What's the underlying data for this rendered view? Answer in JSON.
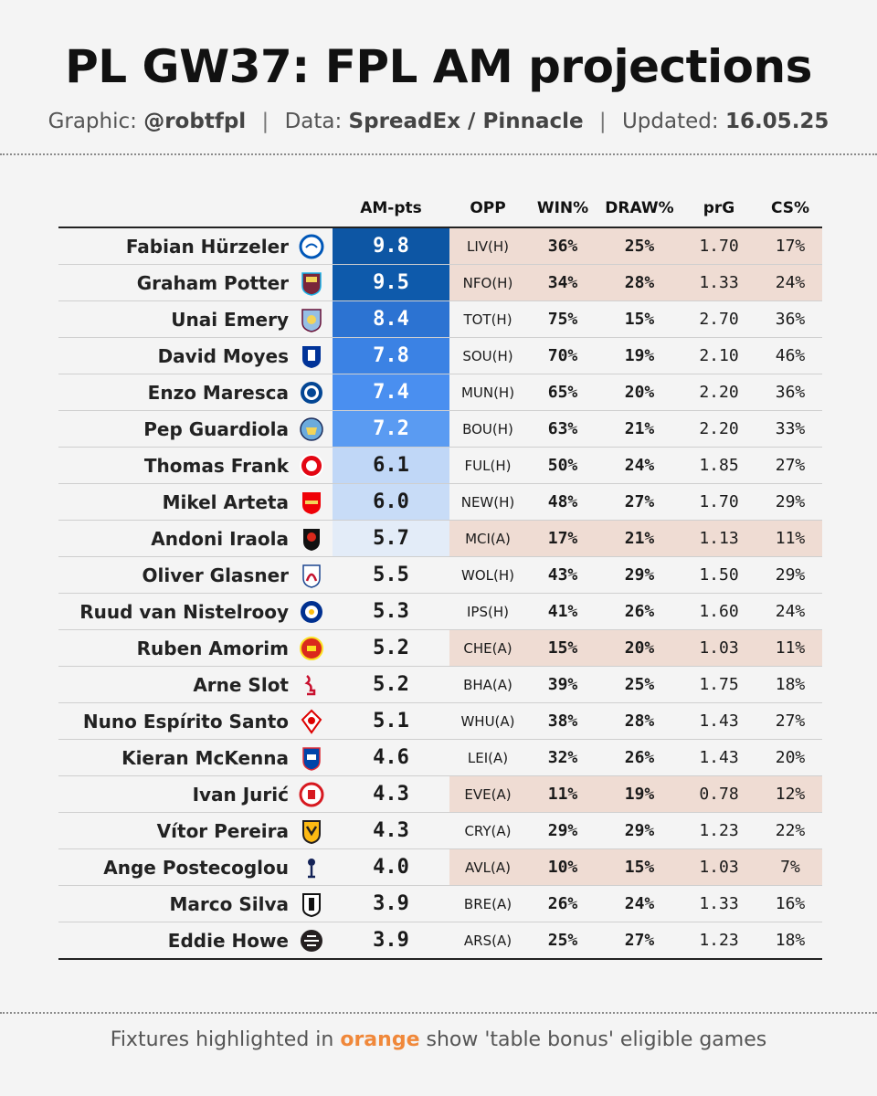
{
  "title": "PL GW37: FPL AM projections",
  "subtitle": {
    "graphic_label": "Graphic:",
    "graphic_value": "@robtfpl",
    "sep": "|",
    "data_label": "Data:",
    "data_value": "SpreadEx / Pinnacle",
    "updated_label": "Updated:",
    "updated_value": "16.05.25"
  },
  "columns": {
    "pts": "AM-pts",
    "opp": "OPP",
    "win": "WIN%",
    "draw": "DRAW%",
    "prg": "prG",
    "cs": "CS%"
  },
  "colors": {
    "highlight": "#efdcd3",
    "accent": "#f0883a"
  },
  "rows": [
    {
      "name": "Fabian Hürzeler",
      "crest": "brighton-crest-icon",
      "pts": "9.8",
      "pts_bg": "#0d56a4",
      "pts_fg": "#ffffff",
      "opp": "LIV(H)",
      "win": "36%",
      "draw": "25%",
      "prg": "1.70",
      "cs": "17%",
      "highlight": true
    },
    {
      "name": "Graham Potter",
      "crest": "west-ham-crest-icon",
      "pts": "9.5",
      "pts_bg": "#0e5aab",
      "pts_fg": "#ffffff",
      "opp": "NFO(H)",
      "win": "34%",
      "draw": "28%",
      "prg": "1.33",
      "cs": "24%",
      "highlight": true
    },
    {
      "name": "Unai Emery",
      "crest": "aston-villa-crest-icon",
      "pts": "8.4",
      "pts_bg": "#2c73d2",
      "pts_fg": "#ffffff",
      "opp": "TOT(H)",
      "win": "75%",
      "draw": "15%",
      "prg": "2.70",
      "cs": "36%",
      "highlight": false
    },
    {
      "name": "David Moyes",
      "crest": "everton-crest-icon",
      "pts": "7.8",
      "pts_bg": "#3b82e4",
      "pts_fg": "#ffffff",
      "opp": "SOU(H)",
      "win": "70%",
      "draw": "19%",
      "prg": "2.10",
      "cs": "46%",
      "highlight": false
    },
    {
      "name": "Enzo Maresca",
      "crest": "chelsea-crest-icon",
      "pts": "7.4",
      "pts_bg": "#4a8ff0",
      "pts_fg": "#ffffff",
      "opp": "MUN(H)",
      "win": "65%",
      "draw": "20%",
      "prg": "2.20",
      "cs": "36%",
      "highlight": false
    },
    {
      "name": "Pep Guardiola",
      "crest": "man-city-crest-icon",
      "pts": "7.2",
      "pts_bg": "#5a9bf2",
      "pts_fg": "#ffffff",
      "opp": "BOU(H)",
      "win": "63%",
      "draw": "21%",
      "prg": "2.20",
      "cs": "33%",
      "highlight": false
    },
    {
      "name": "Thomas Frank",
      "crest": "brentford-crest-icon",
      "pts": "6.1",
      "pts_bg": "#c0d7f7",
      "pts_fg": "#1a1a1a",
      "opp": "FUL(H)",
      "win": "50%",
      "draw": "24%",
      "prg": "1.85",
      "cs": "27%",
      "highlight": false
    },
    {
      "name": "Mikel Arteta",
      "crest": "arsenal-crest-icon",
      "pts": "6.0",
      "pts_bg": "#c8dcf7",
      "pts_fg": "#1a1a1a",
      "opp": "NEW(H)",
      "win": "48%",
      "draw": "27%",
      "prg": "1.70",
      "cs": "29%",
      "highlight": false
    },
    {
      "name": "Andoni Iraola",
      "crest": "bournemouth-crest-icon",
      "pts": "5.7",
      "pts_bg": "#e3ecf8",
      "pts_fg": "#1a1a1a",
      "opp": "MCI(A)",
      "win": "17%",
      "draw": "21%",
      "prg": "1.13",
      "cs": "11%",
      "highlight": true
    },
    {
      "name": "Oliver Glasner",
      "crest": "crystal-palace-crest-icon",
      "pts": "5.5",
      "pts_bg": "transparent",
      "pts_fg": "#1a1a1a",
      "opp": "WOL(H)",
      "win": "43%",
      "draw": "29%",
      "prg": "1.50",
      "cs": "29%",
      "highlight": false
    },
    {
      "name": "Ruud van Nistelrooy",
      "crest": "leicester-crest-icon",
      "pts": "5.3",
      "pts_bg": "transparent",
      "pts_fg": "#1a1a1a",
      "opp": "IPS(H)",
      "win": "41%",
      "draw": "26%",
      "prg": "1.60",
      "cs": "24%",
      "highlight": false
    },
    {
      "name": "Ruben Amorim",
      "crest": "man-united-crest-icon",
      "pts": "5.2",
      "pts_bg": "transparent",
      "pts_fg": "#1a1a1a",
      "opp": "CHE(A)",
      "win": "15%",
      "draw": "20%",
      "prg": "1.03",
      "cs": "11%",
      "highlight": true
    },
    {
      "name": "Arne Slot",
      "crest": "liverpool-crest-icon",
      "pts": "5.2",
      "pts_bg": "transparent",
      "pts_fg": "#1a1a1a",
      "opp": "BHA(A)",
      "win": "39%",
      "draw": "25%",
      "prg": "1.75",
      "cs": "18%",
      "highlight": false
    },
    {
      "name": "Nuno Espírito Santo",
      "crest": "nottingham-forest-crest-icon",
      "pts": "5.1",
      "pts_bg": "transparent",
      "pts_fg": "#1a1a1a",
      "opp": "WHU(A)",
      "win": "38%",
      "draw": "28%",
      "prg": "1.43",
      "cs": "27%",
      "highlight": false
    },
    {
      "name": "Kieran McKenna",
      "crest": "ipswich-crest-icon",
      "pts": "4.6",
      "pts_bg": "transparent",
      "pts_fg": "#1a1a1a",
      "opp": "LEI(A)",
      "win": "32%",
      "draw": "26%",
      "prg": "1.43",
      "cs": "20%",
      "highlight": false
    },
    {
      "name": "Ivan Jurić",
      "crest": "southampton-crest-icon",
      "pts": "4.3",
      "pts_bg": "transparent",
      "pts_fg": "#1a1a1a",
      "opp": "EVE(A)",
      "win": "11%",
      "draw": "19%",
      "prg": "0.78",
      "cs": "12%",
      "highlight": true
    },
    {
      "name": "Vítor Pereira",
      "crest": "wolves-crest-icon",
      "pts": "4.3",
      "pts_bg": "transparent",
      "pts_fg": "#1a1a1a",
      "opp": "CRY(A)",
      "win": "29%",
      "draw": "29%",
      "prg": "1.23",
      "cs": "22%",
      "highlight": false
    },
    {
      "name": "Ange Postecoglou",
      "crest": "tottenham-crest-icon",
      "pts": "4.0",
      "pts_bg": "transparent",
      "pts_fg": "#1a1a1a",
      "opp": "AVL(A)",
      "win": "10%",
      "draw": "15%",
      "prg": "1.03",
      "cs": "7%",
      "highlight": true
    },
    {
      "name": "Marco Silva",
      "crest": "fulham-crest-icon",
      "pts": "3.9",
      "pts_bg": "transparent",
      "pts_fg": "#1a1a1a",
      "opp": "BRE(A)",
      "win": "26%",
      "draw": "24%",
      "prg": "1.33",
      "cs": "16%",
      "highlight": false
    },
    {
      "name": "Eddie Howe",
      "crest": "newcastle-crest-icon",
      "pts": "3.9",
      "pts_bg": "transparent",
      "pts_fg": "#1a1a1a",
      "opp": "ARS(A)",
      "win": "25%",
      "draw": "27%",
      "prg": "1.23",
      "cs": "18%",
      "highlight": false
    }
  ],
  "footer": {
    "pre": "Fixtures highlighted in ",
    "accent": "orange",
    "post": " show 'table bonus' eligible games"
  }
}
